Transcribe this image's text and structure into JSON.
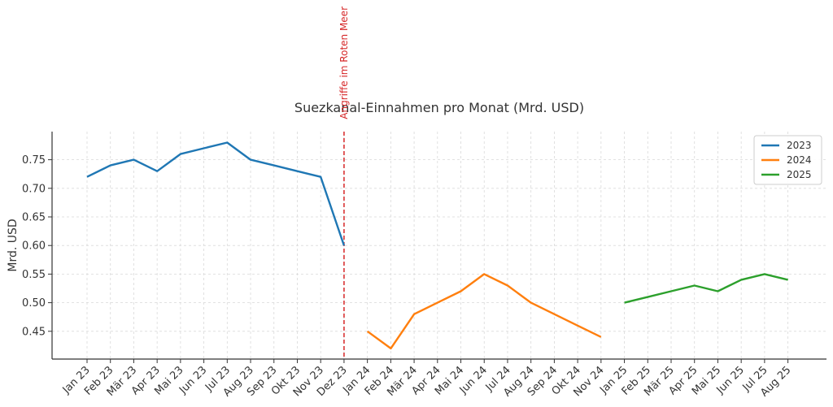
{
  "chart_data": {
    "type": "line",
    "title": "Suezkanal-Einnahmen pro Monat (Mrd. USD)",
    "xlabel": "",
    "ylabel": "Mrd. USD",
    "ylim": [
      0.4,
      0.8
    ],
    "yticks": [
      0.45,
      0.5,
      0.55,
      0.6,
      0.65,
      0.7,
      0.75
    ],
    "grid": true,
    "legend_position": "top-right",
    "categories": [
      "Jan 23",
      "Feb 23",
      "Mär 23",
      "Apr 23",
      "Mai 23",
      "Jun 23",
      "Jul 23",
      "Aug 23",
      "Sep 23",
      "Okt 23",
      "Nov 23",
      "Dez 23",
      "Jan 24",
      "Feb 24",
      "Mär 24",
      "Apr 24",
      "Mai 24",
      "Jun 24",
      "Jul 24",
      "Aug 24",
      "Sep 24",
      "Okt 24",
      "Nov 24",
      "Jan 25",
      "Feb 25",
      "Mär 25",
      "Apr 25",
      "Mai 25",
      "Jun 25",
      "Jul 25",
      "Aug 25"
    ],
    "series": [
      {
        "name": "2023",
        "color": "#1f77b4",
        "points": [
          [
            "Jan 23",
            0.72
          ],
          [
            "Feb 23",
            0.74
          ],
          [
            "Mär 23",
            0.75
          ],
          [
            "Apr 23",
            0.73
          ],
          [
            "Mai 23",
            0.76
          ],
          [
            "Jun 23",
            0.77
          ],
          [
            "Jul 23",
            0.78
          ],
          [
            "Aug 23",
            0.75
          ],
          [
            "Sep 23",
            0.74
          ],
          [
            "Okt 23",
            0.73
          ],
          [
            "Nov 23",
            0.72
          ],
          [
            "Dez 23",
            0.6
          ]
        ]
      },
      {
        "name": "2024",
        "color": "#ff7f0e",
        "points": [
          [
            "Jan 24",
            0.45
          ],
          [
            "Feb 24",
            0.42
          ],
          [
            "Mär 24",
            0.48
          ],
          [
            "Apr 24",
            0.5
          ],
          [
            "Mai 24",
            0.52
          ],
          [
            "Jun 24",
            0.55
          ],
          [
            "Jul 24",
            0.53
          ],
          [
            "Aug 24",
            0.5
          ],
          [
            "Sep 24",
            0.48
          ],
          [
            "Okt 24",
            0.46
          ],
          [
            "Nov 24",
            0.44
          ]
        ]
      },
      {
        "name": "2025",
        "color": "#2ca02c",
        "points": [
          [
            "Jan 25",
            0.5
          ],
          [
            "Feb 25",
            0.51
          ],
          [
            "Mär 25",
            0.52
          ],
          [
            "Apr 25",
            0.53
          ],
          [
            "Mai 25",
            0.52
          ],
          [
            "Jun 25",
            0.54
          ],
          [
            "Jul 25",
            0.55
          ],
          [
            "Aug 25",
            0.54
          ]
        ]
      }
    ],
    "annotations": [
      {
        "at": "Dez 23",
        "text": "Angriffe im Roten Meer",
        "color": "#d62728",
        "style": "dashed-vertical-line"
      }
    ]
  }
}
